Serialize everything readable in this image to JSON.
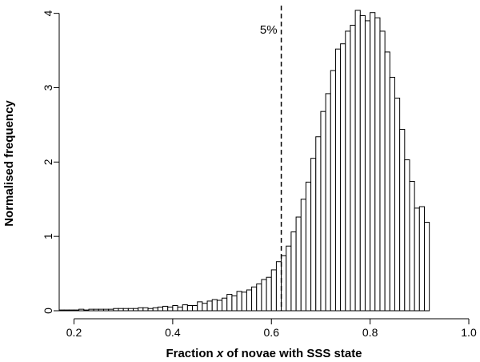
{
  "chart_data": {
    "type": "bar",
    "xlabel_parts": [
      "Fraction ",
      "x",
      " of novae with SSS state"
    ],
    "ylabel": "Normalised frequency",
    "xlim": [
      0.17,
      1.0
    ],
    "ylim": [
      0,
      4.05
    ],
    "xticks": [
      0.2,
      0.4,
      0.6,
      0.8,
      1.0
    ],
    "xtick_labels": [
      "0.2",
      "0.4",
      "0.6",
      "0.8",
      "1.0"
    ],
    "yticks": [
      0,
      1,
      2,
      3,
      4
    ],
    "ytick_labels": [
      "0",
      "1",
      "2",
      "3",
      "4"
    ],
    "bin_start": 0.17,
    "bin_width": 0.01,
    "values": [
      0.01,
      0.01,
      0.01,
      0.01,
      0.02,
      0.01,
      0.02,
      0.02,
      0.02,
      0.02,
      0.02,
      0.03,
      0.03,
      0.03,
      0.03,
      0.03,
      0.04,
      0.04,
      0.03,
      0.04,
      0.05,
      0.06,
      0.05,
      0.07,
      0.05,
      0.08,
      0.07,
      0.07,
      0.12,
      0.1,
      0.13,
      0.15,
      0.14,
      0.17,
      0.22,
      0.2,
      0.26,
      0.25,
      0.28,
      0.32,
      0.36,
      0.42,
      0.45,
      0.55,
      0.66,
      0.74,
      0.87,
      1.06,
      1.26,
      1.5,
      1.73,
      2.05,
      2.34,
      2.68,
      2.92,
      3.23,
      3.52,
      3.59,
      3.76,
      3.84,
      4.04,
      3.97,
      3.9,
      4.01,
      3.94,
      3.76,
      3.48,
      3.14,
      2.86,
      2.44,
      2.03,
      1.74,
      1.38,
      1.4,
      1.19
    ],
    "reference_line": {
      "x": 0.62,
      "label": "5%"
    }
  }
}
